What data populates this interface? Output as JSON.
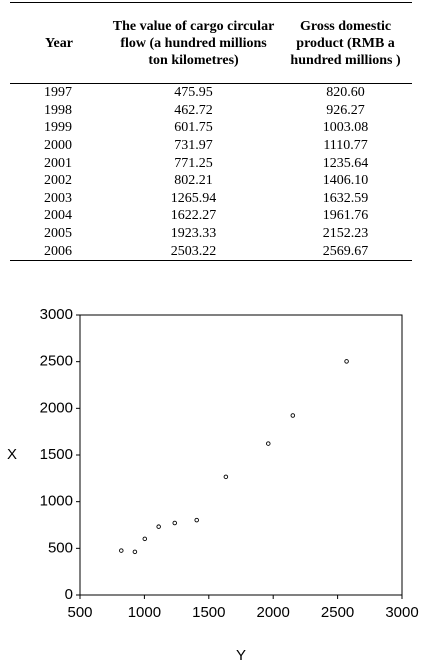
{
  "table": {
    "header": [
      "Year",
      "The value of cargo circular flow (a hundred millions ton kilometres)",
      "Gross domestic product (RMB a hundred millions )"
    ],
    "rows": [
      [
        "1997",
        "475.95",
        "820.60"
      ],
      [
        "1998",
        "462.72",
        "926.27"
      ],
      [
        "1999",
        "601.75",
        "1003.08"
      ],
      [
        "2000",
        "731.97",
        "1110.77"
      ],
      [
        "2001",
        "771.25",
        "1235.64"
      ],
      [
        "2002",
        "802.21",
        "1406.10"
      ],
      [
        "2003",
        "1265.94",
        "1632.59"
      ],
      [
        "2004",
        "1622.27",
        "1961.76"
      ],
      [
        "2005",
        "1923.33",
        "2152.23"
      ],
      [
        "2006",
        "2503.22",
        "2569.67"
      ]
    ]
  },
  "chart_data": {
    "type": "scatter",
    "x_label": "Y",
    "y_label": "X",
    "x": [
      820.6,
      926.27,
      1003.08,
      1110.77,
      1235.64,
      1406.1,
      1632.59,
      1961.76,
      2152.23,
      2569.67
    ],
    "values": [
      475.95,
      462.72,
      601.75,
      731.97,
      771.25,
      802.21,
      1265.94,
      1622.27,
      1923.33,
      2503.22
    ],
    "color": "#000000",
    "xlim": [
      500,
      3000
    ],
    "xticks": [
      500,
      1000,
      1500,
      2000,
      2500,
      3000
    ],
    "ylim": [
      0,
      3000
    ],
    "yticks": [
      0,
      500,
      1000,
      1500,
      2000,
      2500,
      3000
    ]
  }
}
